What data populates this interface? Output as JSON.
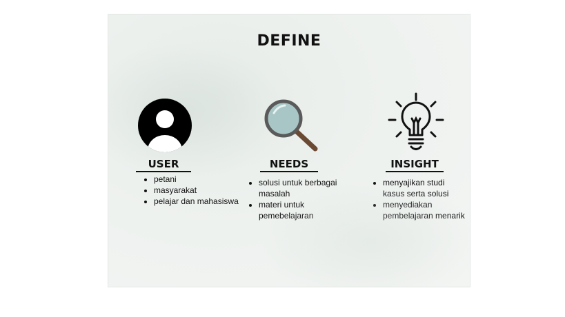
{
  "slide": {
    "title": "DEFINE"
  },
  "columns": {
    "user": {
      "heading": "USER",
      "icon": "user-avatar-icon",
      "points": [
        "petani",
        "masyarakat",
        "pelajar dan mahasiswa"
      ]
    },
    "needs": {
      "heading": "NEEDS",
      "icon": "magnifying-glass-icon",
      "points": [
        "solusi untuk berbagai masalah",
        "materi untuk pemebelajaran"
      ]
    },
    "insight": {
      "heading": "INSIGHT",
      "icon": "light-bulb-icon",
      "points": [
        "menyajikan studi kasus serta solusi",
        "menyediakan pembelajaran menarik"
      ]
    }
  },
  "colors": {
    "text": "#111111",
    "slide_background": "#edf1ee",
    "magnifier_rim": "#5a5a5a",
    "magnifier_lens": "#a9c6c6",
    "magnifier_handle": "#6b4a33"
  }
}
